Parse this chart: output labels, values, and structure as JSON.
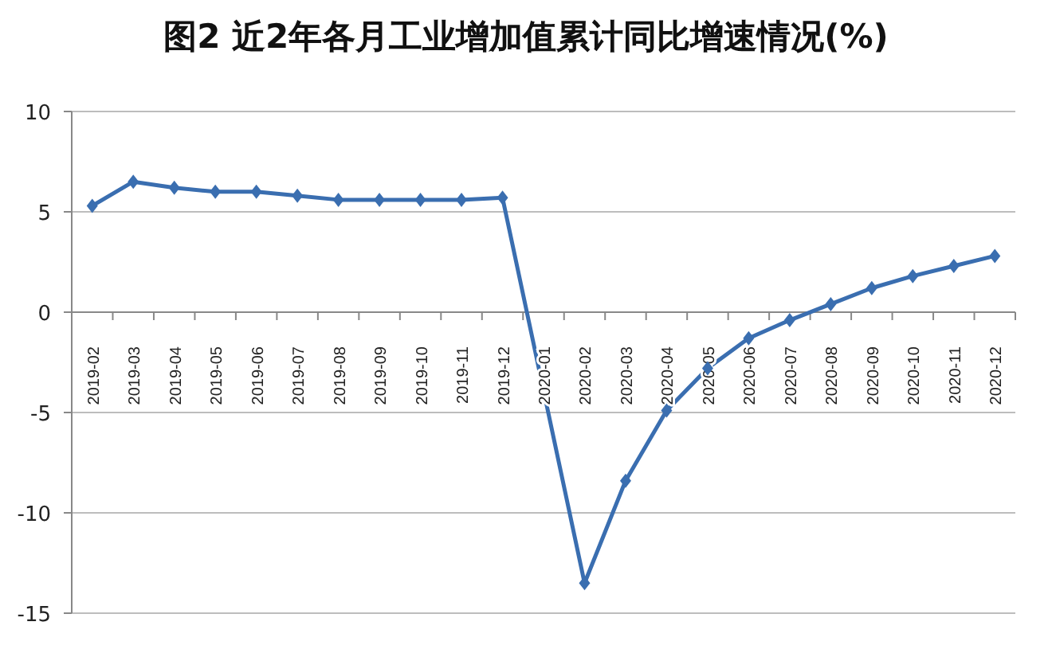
{
  "chart_data": {
    "type": "line",
    "title": "图2 近2年各月工业增加值累计同比增速情况(%)",
    "categories": [
      "2019-02",
      "2019-03",
      "2019-04",
      "2019-05",
      "2019-06",
      "2019-07",
      "2019-08",
      "2019-09",
      "2019-10",
      "2019-11",
      "2019-12",
      "2020-01",
      "2020-02",
      "2020-03",
      "2020-04",
      "2020-05",
      "2020-06",
      "2020-07",
      "2020-08",
      "2020-09",
      "2020-10",
      "2020-11",
      "2020-12"
    ],
    "values": [
      5.3,
      6.5,
      6.2,
      6.0,
      6.0,
      5.8,
      5.6,
      5.6,
      5.6,
      5.6,
      5.7,
      null,
      -13.5,
      -8.4,
      -4.9,
      -2.8,
      -1.3,
      -0.4,
      0.4,
      1.2,
      1.8,
      2.3,
      2.8
    ],
    "color": "#3a6eb0",
    "ylim": [
      -15,
      10
    ],
    "yticks": [
      -15,
      -10,
      -5,
      0,
      5,
      10
    ],
    "grid": "y",
    "marker": "diamond"
  }
}
